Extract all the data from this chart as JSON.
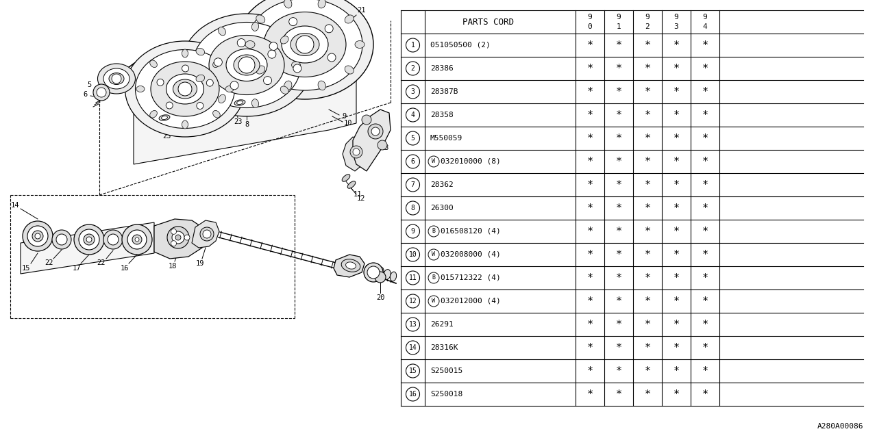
{
  "parts": [
    {
      "num": "1",
      "prefix": "",
      "code": "051050500 (2)"
    },
    {
      "num": "2",
      "prefix": "",
      "code": "28386"
    },
    {
      "num": "3",
      "prefix": "",
      "code": "28387B"
    },
    {
      "num": "4",
      "prefix": "",
      "code": "28358"
    },
    {
      "num": "5",
      "prefix": "",
      "code": "M550059"
    },
    {
      "num": "6",
      "prefix": "W",
      "code": "032010000 (8)"
    },
    {
      "num": "7",
      "prefix": "",
      "code": "28362"
    },
    {
      "num": "8",
      "prefix": "",
      "code": "26300"
    },
    {
      "num": "9",
      "prefix": "B",
      "code": "016508120 (4)"
    },
    {
      "num": "10",
      "prefix": "W",
      "code": "032008000 (4)"
    },
    {
      "num": "11",
      "prefix": "B",
      "code": "015712322 (4)"
    },
    {
      "num": "12",
      "prefix": "W",
      "code": "032012000 (4)"
    },
    {
      "num": "13",
      "prefix": "",
      "code": "26291"
    },
    {
      "num": "14",
      "prefix": "",
      "code": "28316K"
    },
    {
      "num": "15",
      "prefix": "",
      "code": "S250015"
    },
    {
      "num": "16",
      "prefix": "",
      "code": "S250018"
    }
  ],
  "diagram_ref": "A280A00086",
  "bg_color": "#ffffff"
}
